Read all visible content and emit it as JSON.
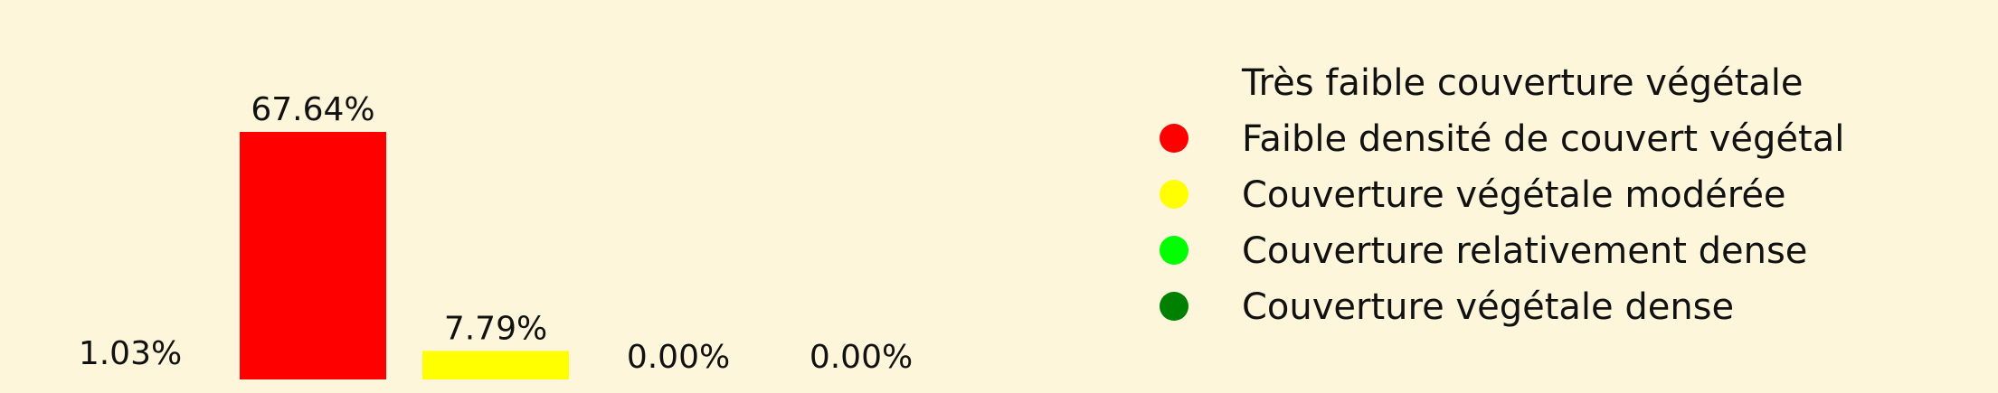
{
  "chart_data": {
    "type": "bar",
    "categories": [
      "Très faible couverture végétale",
      "Faible densité de couvert végétal",
      "Couverture végétale modérée",
      "Couverture relativement dense",
      "Couverture végétale dense"
    ],
    "values": [
      1.03,
      67.64,
      7.79,
      0.0,
      0.0
    ],
    "value_labels": [
      "1.03%",
      "67.64%",
      "7.79%",
      "0.00%",
      "0.00%"
    ],
    "colors": [
      "#fdf6db",
      "#ff0000",
      "#ffff00",
      "#00ff00",
      "#008000"
    ],
    "ylim": [
      0,
      67.64
    ],
    "grid": false,
    "legend": {
      "placement": "right",
      "entries": [
        "Très faible couverture végétale",
        "Faible densité de couvert végétal",
        "Couverture végétale modérée",
        "Couverture relativement dense",
        "Couverture végétale dense"
      ]
    },
    "background": "#fdf6db"
  }
}
